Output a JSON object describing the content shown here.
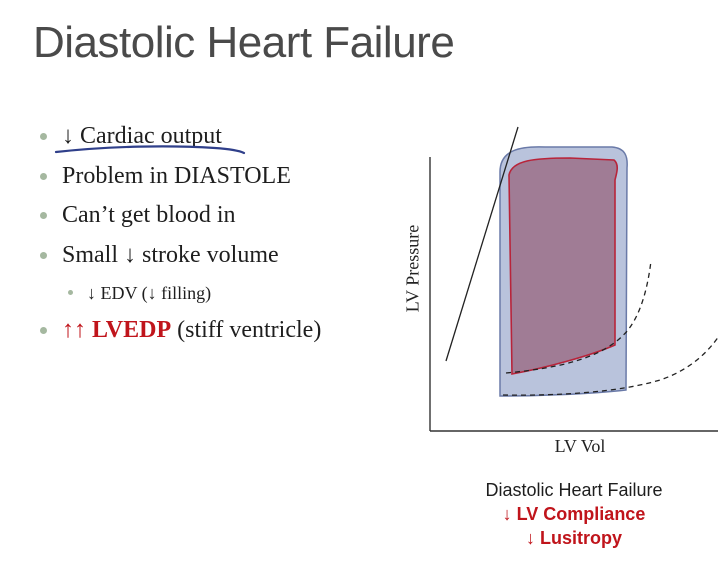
{
  "slide": {
    "title": "Diastolic Heart Failure",
    "bullets": [
      {
        "text": "↓ Cardiac output"
      },
      {
        "text": "Problem in DIASTOLE"
      },
      {
        "text": "Can’t get blood in"
      },
      {
        "text": "Small ↓ stroke volume"
      },
      {
        "text": "↓ EDV (↓ filling)"
      },
      {
        "highlight": "↑↑ LVEDP",
        "rest": " (stiff ventricle)"
      }
    ]
  },
  "diagram": {
    "y_axis_label": "LV Pressure",
    "x_axis_label": "LV Vol",
    "caption": [
      "Diastolic Heart Failure",
      "↓ LV Compliance",
      "↓ Lusitropy"
    ]
  },
  "colors": {
    "title": "#4a4a4a",
    "emphasis": "#c0141b",
    "bullet_dot": "#a5b8a0",
    "annotation_ink": "#2f3f8a",
    "normal_loop_fill": "#b9c3dc",
    "failure_loop_fill": "#a07c95",
    "failure_loop_stroke": "#b8243a"
  }
}
